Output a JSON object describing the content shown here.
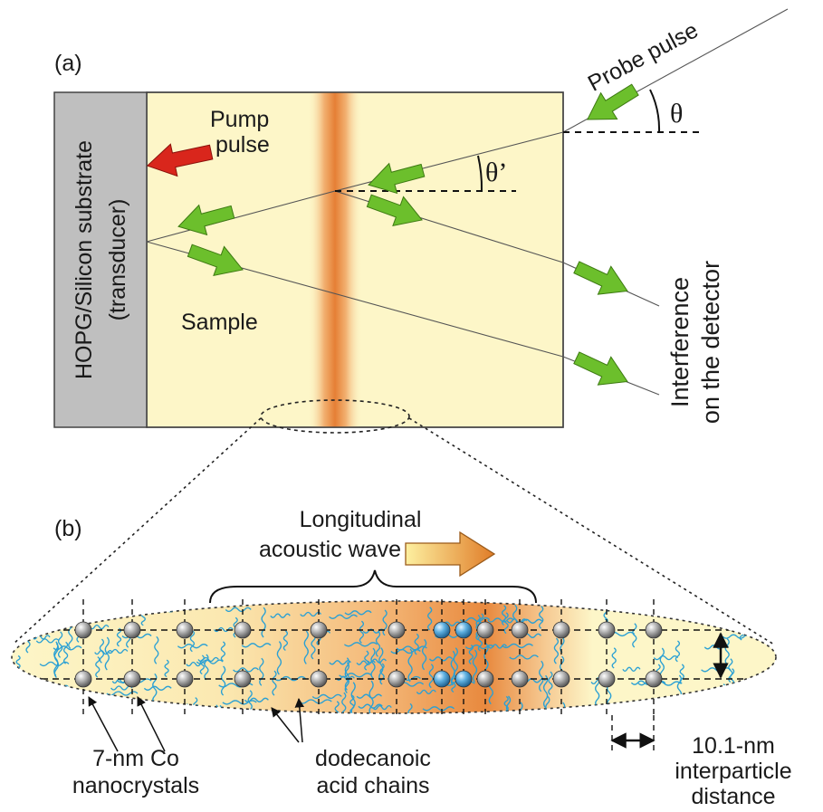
{
  "panel_a": {
    "label": "(a)",
    "substrate_line1": "HOPG/Silicon substrate",
    "substrate_line2": "(transducer)",
    "pump_line1": "Pump",
    "pump_line2": "pulse",
    "probe": "Probe pulse",
    "theta": "θ",
    "theta_prime": "θ’",
    "sample": "Sample",
    "detector_line1": "Interference",
    "detector_line2": "on the detector"
  },
  "panel_b": {
    "label": "(b)",
    "wave_line1": "Longitudinal",
    "wave_line2": "acoustic wave",
    "co_line1": "7-nm Co",
    "co_line2": "nanocrystals",
    "chains_line1": "dodecanoic",
    "chains_line2": "acid chains",
    "dist_line1": "10.1-nm",
    "dist_line2": "interparticle",
    "dist_line3": "distance"
  },
  "colors": {
    "sample_fill": "#fdf6c8",
    "substrate_fill": "#bfbfbf",
    "acoustic_band": "#e8904a",
    "pump_arrow": "#d9261c",
    "probe_arrow": "#6cbf2c",
    "chain_color": "#2aa0d4",
    "particle_color": "#9a9a9a"
  },
  "icons": {
    "pump": "red-arrow-icon",
    "probe": "green-arrow-icon",
    "wave": "gradient-arrow-icon"
  }
}
